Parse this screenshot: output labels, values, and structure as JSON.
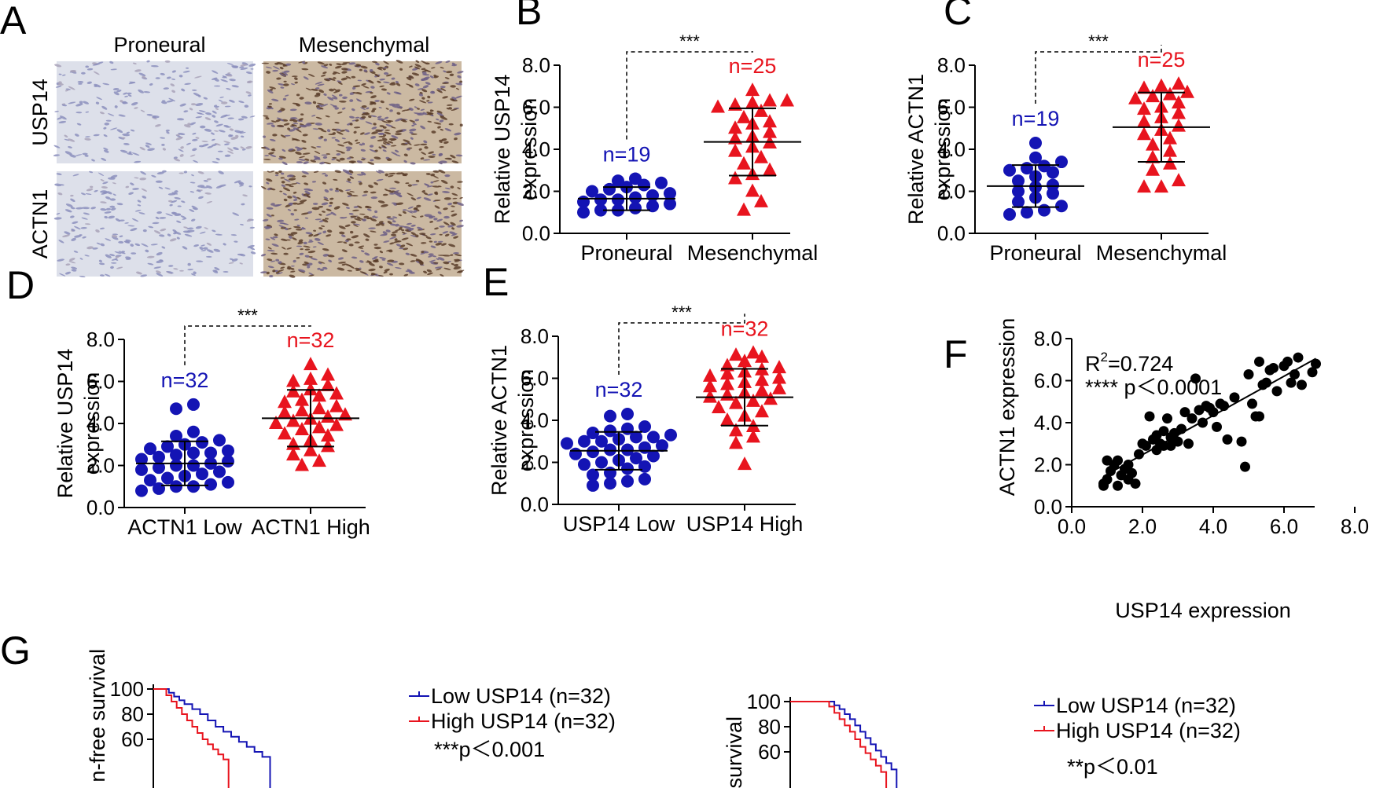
{
  "colors": {
    "blue": "#1414b4",
    "red": "#e8141e",
    "black": "#000000",
    "grid": "#000000"
  },
  "chart_data": [
    {
      "id": "A",
      "type": "image-panel",
      "panel_label": "A",
      "columns": [
        "Proneural",
        "Mesenchymal"
      ],
      "rows": [
        "USP14",
        "ACTN1"
      ]
    },
    {
      "id": "B",
      "type": "scatter",
      "panel_label": "B",
      "ylabel_lines": [
        "Relative USP14",
        "expression"
      ],
      "ylim": [
        0,
        8
      ],
      "yticks": [
        "0.0",
        "2.0",
        "4.0",
        "6.0",
        "8.0"
      ],
      "categories": [
        "Proneural",
        "Mesenchymal"
      ],
      "groups": [
        {
          "name": "Proneural",
          "n_label": "n=19",
          "color": "blue",
          "marker": "circle",
          "mean": 1.65,
          "sd": 0.55,
          "values": [
            1.0,
            1.1,
            1.1,
            1.2,
            1.3,
            1.4,
            1.5,
            1.6,
            1.6,
            1.7,
            1.8,
            1.9,
            2.0,
            2.1,
            2.2,
            2.3,
            2.4,
            2.5,
            2.6
          ]
        },
        {
          "name": "Mesenchymal",
          "n_label": "n=25",
          "color": "red",
          "marker": "triangle",
          "mean": 4.35,
          "sd": 1.6,
          "values": [
            1.1,
            1.5,
            2.0,
            2.6,
            2.8,
            3.0,
            3.3,
            3.6,
            3.9,
            4.1,
            4.3,
            4.5,
            4.6,
            4.8,
            5.0,
            5.2,
            5.3,
            5.5,
            5.8,
            6.0,
            6.1,
            6.2,
            6.3,
            6.3,
            6.8
          ]
        }
      ],
      "significance": "***"
    },
    {
      "id": "C",
      "type": "scatter",
      "panel_label": "C",
      "ylabel_lines": [
        "Relative ACTN1",
        "expression"
      ],
      "ylim": [
        0,
        8
      ],
      "yticks": [
        "0.0",
        "2.0",
        "4.0",
        "6.0",
        "8.0"
      ],
      "categories": [
        "Proneural",
        "Mesenchymal"
      ],
      "groups": [
        {
          "name": "Proneural",
          "n_label": "n=19",
          "color": "blue",
          "marker": "circle",
          "mean": 2.25,
          "sd": 1.0,
          "values": [
            0.9,
            1.0,
            1.1,
            1.3,
            1.5,
            1.7,
            1.9,
            2.0,
            2.2,
            2.3,
            2.5,
            2.7,
            2.9,
            3.0,
            3.1,
            3.2,
            3.4,
            3.6,
            4.3
          ]
        },
        {
          "name": "Mesenchymal",
          "n_label": "n=25",
          "color": "red",
          "marker": "triangle",
          "mean": 5.05,
          "sd": 1.65,
          "values": [
            2.2,
            2.2,
            2.5,
            3.0,
            3.3,
            3.6,
            3.9,
            4.2,
            4.5,
            4.7,
            4.9,
            5.1,
            5.3,
            5.5,
            5.7,
            5.9,
            6.0,
            6.2,
            6.4,
            6.5,
            6.6,
            6.7,
            6.9,
            7.0,
            7.1
          ]
        }
      ],
      "significance": "***"
    },
    {
      "id": "D",
      "type": "scatter",
      "panel_label": "D",
      "ylabel_lines": [
        "Relative USP14",
        "expression"
      ],
      "ylim": [
        0,
        8
      ],
      "yticks": [
        "0.0",
        "2.0",
        "4.0",
        "6.0",
        "8.0"
      ],
      "categories": [
        "ACTN1 Low",
        "ACTN1 High"
      ],
      "groups": [
        {
          "name": "ACTN1 Low",
          "n_label": "n=32",
          "color": "blue",
          "marker": "circle",
          "mean": 2.1,
          "sd": 1.05,
          "values": [
            0.8,
            0.9,
            1.0,
            1.0,
            1.1,
            1.2,
            1.3,
            1.4,
            1.5,
            1.6,
            1.7,
            1.8,
            1.9,
            2.0,
            2.0,
            2.1,
            2.2,
            2.3,
            2.4,
            2.5,
            2.6,
            2.6,
            2.7,
            2.8,
            2.9,
            3.0,
            3.1,
            3.2,
            3.4,
            3.6,
            4.7,
            4.9
          ]
        },
        {
          "name": "ACTN1 High",
          "n_label": "n=32",
          "color": "red",
          "marker": "triangle",
          "mean": 4.25,
          "sd": 1.35,
          "values": [
            2.0,
            2.2,
            2.5,
            2.7,
            2.9,
            3.0,
            3.2,
            3.4,
            3.5,
            3.7,
            3.8,
            3.9,
            4.0,
            4.1,
            4.2,
            4.3,
            4.4,
            4.5,
            4.6,
            4.7,
            4.8,
            5.0,
            5.1,
            5.3,
            5.4,
            5.5,
            5.6,
            5.8,
            6.0,
            6.1,
            6.3,
            6.8
          ]
        }
      ],
      "significance": "***"
    },
    {
      "id": "E",
      "type": "scatter",
      "panel_label": "E",
      "ylabel_lines": [
        "Relative ACTN1",
        "expression"
      ],
      "ylim": [
        0,
        8
      ],
      "yticks": [
        "0.0",
        "2.0",
        "4.0",
        "6.0",
        "8.0"
      ],
      "categories": [
        "USP14 Low",
        "USP14 High"
      ],
      "groups": [
        {
          "name": "USP14 Low",
          "n_label": "n=32",
          "color": "blue",
          "marker": "circle",
          "mean": 2.55,
          "sd": 0.9,
          "values": [
            0.9,
            1.0,
            1.1,
            1.2,
            1.4,
            1.5,
            1.7,
            1.8,
            1.9,
            2.0,
            2.1,
            2.2,
            2.3,
            2.4,
            2.5,
            2.6,
            2.6,
            2.7,
            2.8,
            2.9,
            3.0,
            3.0,
            3.1,
            3.2,
            3.2,
            3.3,
            3.4,
            3.5,
            3.6,
            3.7,
            4.2,
            4.3
          ]
        },
        {
          "name": "USP14 High",
          "n_label": "n=32",
          "color": "red",
          "marker": "triangle",
          "mean": 5.1,
          "sd": 1.35,
          "values": [
            1.9,
            2.9,
            3.2,
            3.5,
            3.7,
            4.0,
            4.2,
            4.4,
            4.6,
            4.8,
            4.9,
            5.0,
            5.1,
            5.2,
            5.3,
            5.4,
            5.5,
            5.6,
            5.7,
            5.8,
            5.9,
            6.0,
            6.1,
            6.2,
            6.3,
            6.4,
            6.5,
            6.6,
            6.8,
            7.0,
            7.1,
            7.2
          ]
        }
      ],
      "significance": "***"
    },
    {
      "id": "F",
      "type": "scatter",
      "panel_label": "F",
      "xlabel": "USP14 expression",
      "ylabel": "ACTN1 expression",
      "xlim": [
        0,
        8
      ],
      "ylim": [
        0,
        8
      ],
      "xticks": [
        "0.0",
        "2.0",
        "4.0",
        "6.0",
        "8.0"
      ],
      "yticks": [
        "0.0",
        "2.0",
        "4.0",
        "6.0",
        "8.0"
      ],
      "annotation_r2_prefix": "R",
      "annotation_r2_sup": "2",
      "annotation_r2_value": "=0.724",
      "annotation_p": "**** p＜0.0001",
      "fit_line": {
        "x": [
          0.9,
          6.9
        ],
        "y": [
          1.45,
          7.05
        ]
      },
      "points": [
        [
          0.9,
          1.1
        ],
        [
          0.9,
          1.0
        ],
        [
          1.0,
          1.3
        ],
        [
          1.0,
          2.2
        ],
        [
          1.1,
          1.7
        ],
        [
          1.2,
          2.0
        ],
        [
          1.3,
          1.0
        ],
        [
          1.3,
          2.2
        ],
        [
          1.4,
          1.5
        ],
        [
          1.5,
          1.8
        ],
        [
          1.6,
          1.3
        ],
        [
          1.6,
          2.0
        ],
        [
          1.7,
          1.6
        ],
        [
          1.8,
          1.1
        ],
        [
          1.9,
          2.5
        ],
        [
          2.0,
          3.0
        ],
        [
          2.1,
          2.9
        ],
        [
          2.2,
          4.3
        ],
        [
          2.3,
          3.2
        ],
        [
          2.4,
          3.4
        ],
        [
          2.4,
          2.7
        ],
        [
          2.5,
          3.0
        ],
        [
          2.6,
          3.6
        ],
        [
          2.6,
          2.9
        ],
        [
          2.7,
          4.2
        ],
        [
          2.8,
          3.3
        ],
        [
          2.8,
          2.9
        ],
        [
          2.9,
          3.5
        ],
        [
          3.0,
          3.1
        ],
        [
          3.1,
          3.7
        ],
        [
          3.2,
          4.5
        ],
        [
          3.3,
          3.0
        ],
        [
          3.4,
          4.2
        ],
        [
          3.5,
          6.1
        ],
        [
          3.6,
          4.6
        ],
        [
          3.7,
          4.0
        ],
        [
          3.8,
          4.8
        ],
        [
          3.9,
          4.7
        ],
        [
          4.0,
          4.5
        ],
        [
          4.1,
          3.8
        ],
        [
          4.2,
          4.9
        ],
        [
          4.3,
          4.8
        ],
        [
          4.4,
          3.2
        ],
        [
          4.6,
          5.2
        ],
        [
          4.8,
          3.1
        ],
        [
          4.9,
          1.9
        ],
        [
          5.0,
          6.3
        ],
        [
          5.1,
          4.9
        ],
        [
          5.2,
          4.3
        ],
        [
          5.3,
          6.9
        ],
        [
          5.3,
          4.3
        ],
        [
          5.4,
          5.8
        ],
        [
          5.5,
          5.9
        ],
        [
          5.6,
          6.5
        ],
        [
          5.7,
          6.6
        ],
        [
          5.8,
          5.5
        ],
        [
          6.0,
          6.7
        ],
        [
          6.1,
          6.9
        ],
        [
          6.2,
          5.9
        ],
        [
          6.3,
          6.3
        ],
        [
          6.4,
          7.1
        ],
        [
          6.5,
          5.8
        ],
        [
          6.8,
          6.4
        ],
        [
          6.9,
          6.8
        ]
      ]
    },
    {
      "id": "G1",
      "type": "line",
      "panel_label": "G",
      "ylabel_visible": "n-free survival",
      "yticks_visible": [
        "100",
        "80",
        "60"
      ],
      "legend": [
        "Low USP14 (n=32)",
        "High USP14 (n=32)"
      ],
      "annotation_p": "***p＜0.001",
      "series": [
        {
          "name": "Low USP14 (n=32)",
          "color": "blue",
          "steps": [
            [
              0,
              100
            ],
            [
              4,
              100
            ],
            [
              6,
              97
            ],
            [
              8,
              94
            ],
            [
              10,
              91
            ],
            [
              12,
              88
            ],
            [
              15,
              84
            ],
            [
              18,
              80
            ],
            [
              21,
              75
            ],
            [
              24,
              70
            ],
            [
              27,
              66
            ],
            [
              30,
              62
            ],
            [
              33,
              58
            ],
            [
              36,
              54
            ],
            [
              39,
              50
            ],
            [
              42,
              46
            ],
            [
              45,
              40
            ]
          ]
        },
        {
          "name": "High USP14 (n=32)",
          "color": "red",
          "steps": [
            [
              0,
              100
            ],
            [
              3,
              100
            ],
            [
              5,
              95
            ],
            [
              7,
              90
            ],
            [
              9,
              85
            ],
            [
              11,
              80
            ],
            [
              13,
              75
            ],
            [
              15,
              70
            ],
            [
              17,
              65
            ],
            [
              19,
              60
            ],
            [
              21,
              56
            ],
            [
              23,
              52
            ],
            [
              25,
              48
            ],
            [
              27,
              44
            ],
            [
              29,
              40
            ]
          ]
        }
      ]
    },
    {
      "id": "G2",
      "type": "line",
      "ylabel_visible": "survival",
      "yticks_visible": [
        "100",
        "80",
        "60"
      ],
      "legend": [
        "Low USP14 (n=32)",
        "High USP14 (n=32)"
      ],
      "annotation_p": "**p＜0.01",
      "series": [
        {
          "name": "Low USP14 (n=32)",
          "color": "blue",
          "steps": [
            [
              0,
              100
            ],
            [
              15,
              100
            ],
            [
              17,
              97
            ],
            [
              19,
              94
            ],
            [
              21,
              90
            ],
            [
              23,
              86
            ],
            [
              25,
              81
            ],
            [
              27,
              76
            ],
            [
              29,
              71
            ],
            [
              31,
              66
            ],
            [
              33,
              61
            ],
            [
              35,
              56
            ],
            [
              37,
              51
            ],
            [
              39,
              46
            ],
            [
              41,
              41
            ]
          ]
        },
        {
          "name": "High USP14 (n=32)",
          "color": "red",
          "steps": [
            [
              0,
              100
            ],
            [
              13,
              100
            ],
            [
              15,
              96
            ],
            [
              17,
              91
            ],
            [
              19,
              86
            ],
            [
              21,
              81
            ],
            [
              23,
              76
            ],
            [
              25,
              70
            ],
            [
              27,
              64
            ],
            [
              29,
              59
            ],
            [
              31,
              54
            ],
            [
              33,
              49
            ],
            [
              35,
              44
            ],
            [
              37,
              39
            ]
          ]
        }
      ]
    }
  ]
}
